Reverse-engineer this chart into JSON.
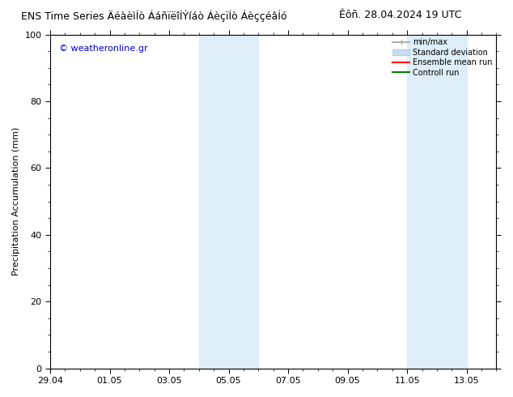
{
  "title_left": "ENS Time Series ÄéàèìÍò ÁáñïëîÍÝíáò ÁèçïÍò ÁèççéâÍó",
  "title_right": "Êôñ. 28.04.2024 19 UTC",
  "ylabel": "Precipitation Accumulation (mm)",
  "ylim": [
    0,
    100
  ],
  "yticks": [
    0,
    20,
    40,
    60,
    80,
    100
  ],
  "watermark": "© weatheronline.gr",
  "band1_start_day": 5,
  "band1_end_day": 7,
  "band2_start_day": 12,
  "band2_end_day": 14,
  "band_color": "#ddeef8",
  "xtick_labels": [
    "29.04",
    "01.05",
    "03.05",
    "05.05",
    "07.05",
    "09.05",
    "11.05",
    "13.05"
  ],
  "xtick_offsets": [
    0,
    2,
    4,
    6,
    8,
    10,
    12,
    14
  ],
  "xlim_start": 0,
  "xlim_end": 15,
  "background_color": "#ffffff",
  "title_fontsize": 9,
  "axis_fontsize": 8,
  "watermark_color": "#0000cc",
  "legend_labels": [
    "min/max",
    "Standard deviation",
    "Ensemble mean run",
    "Controll run"
  ],
  "legend_colors_line": [
    "#a0a0a0",
    "#c8ddf0",
    "#ff0000",
    "#008000"
  ],
  "minmax_line_color": "#a0a0a0",
  "std_fill_color": "#c8ddf0",
  "ens_color": "#ff0000",
  "ctrl_color": "#008000"
}
